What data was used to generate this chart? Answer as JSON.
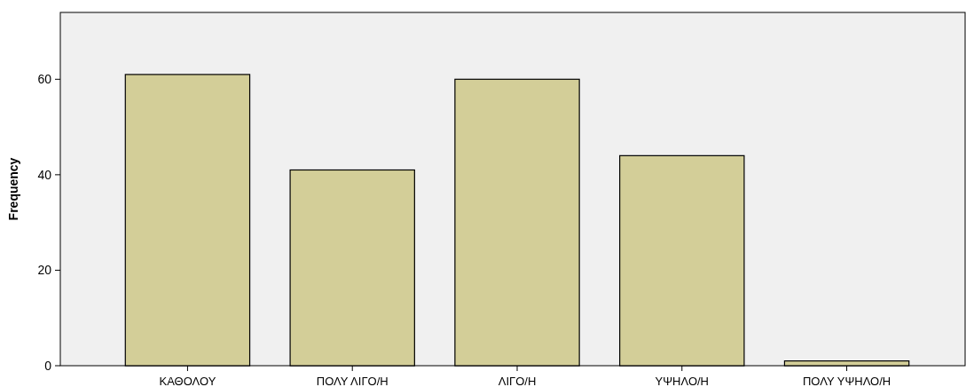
{
  "chart_data": {
    "type": "bar",
    "ylabel": "Frequency",
    "categories": [
      "ΚΑΘΟΛΟΥ",
      "ΠΟΛΥ ΛΙΓΟ/Η",
      "ΛΙΓΟ/Η",
      "ΥΨΗΛΟ/Η",
      "ΠΟΛΥ ΥΨΗΛΟ/Η"
    ],
    "values": [
      61,
      41,
      60,
      44,
      1
    ],
    "color": "#d3ce98",
    "ylim": [
      0,
      74
    ],
    "yticks": [
      0,
      20,
      40,
      60
    ],
    "grid": false
  }
}
